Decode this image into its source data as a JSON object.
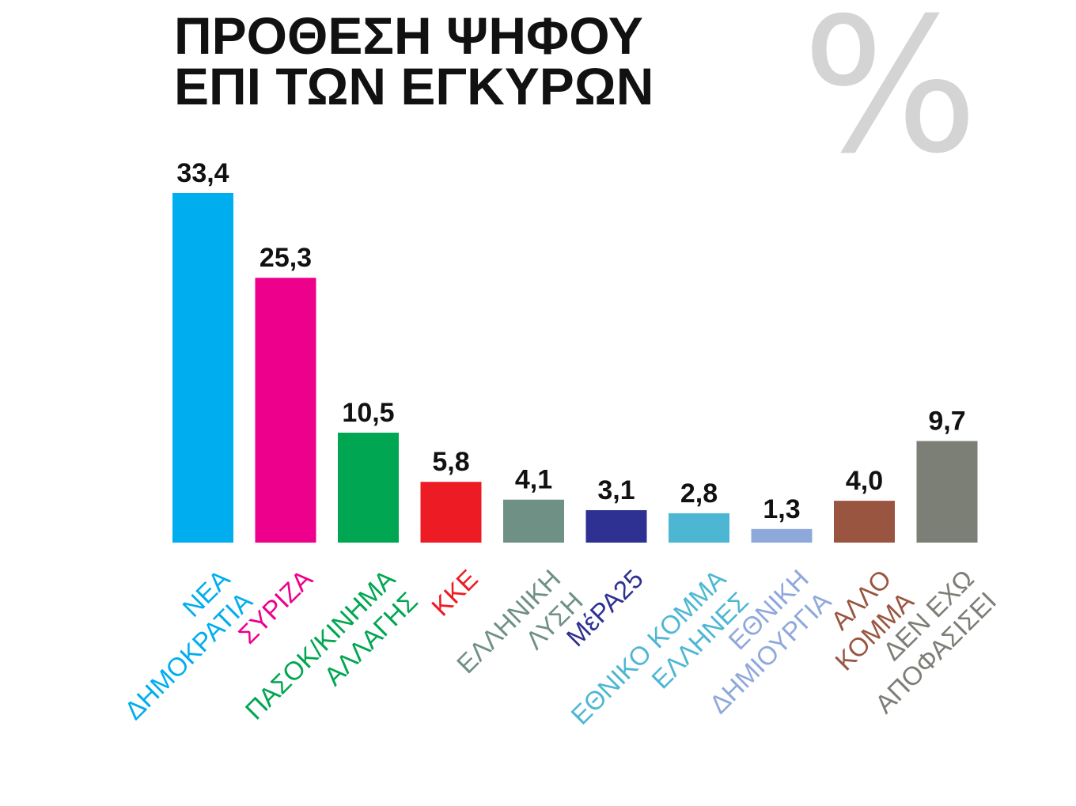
{
  "chart_data": {
    "type": "bar",
    "title": [
      "ΠΡΟΘΕΣΗ ΨΗΦΟΥ",
      "ΕΠΙ ΤΩΝ ΕΓΚΥΡΩΝ"
    ],
    "unit_symbol": "%",
    "categories": [
      [
        "ΝΕΑ",
        "ΔΗΜΟΚΡΑΤΙΑ"
      ],
      [
        "ΣΥΡΙΖΑ"
      ],
      [
        "ΠΑΣΟΚ/ΚΙΝΗΜΑ",
        "ΑΛΛΑΓΗΣ"
      ],
      [
        "ΚΚΕ"
      ],
      [
        "ΕΛΛΗΝΙΚΗ",
        "ΛΥΣΗ"
      ],
      [
        "ΜέΡΑ25"
      ],
      [
        "ΕΘΝΙΚΟ ΚΟΜΜΑ",
        "ΕΛΛΗΝΕΣ"
      ],
      [
        "ΕΘΝΙΚΗ",
        "ΔΗΜΙΟΥΡΓΙΑ"
      ],
      [
        "ΑΛΛΟ",
        "ΚΟΜΜΑ"
      ],
      [
        "ΔΕΝ ΕΧΩ",
        "ΑΠΟΦΑΣΙΣΕΙ"
      ]
    ],
    "values": [
      33.4,
      25.3,
      10.5,
      5.8,
      4.1,
      3.1,
      2.8,
      1.3,
      4.0,
      9.7
    ],
    "value_labels": [
      "33,4",
      "25,3",
      "10,5",
      "5,8",
      "4,1",
      "3,1",
      "2,8",
      "1,3",
      "4,0",
      "9,7"
    ],
    "colors": [
      "#00adef",
      "#ec008c",
      "#00a651",
      "#ed1c24",
      "#6f9085",
      "#2e3192",
      "#4db7d3",
      "#8fa8dc",
      "#9a5540",
      "#7b7f75"
    ],
    "ylim": [
      0,
      33.4
    ],
    "grid": false,
    "legend": "none"
  }
}
